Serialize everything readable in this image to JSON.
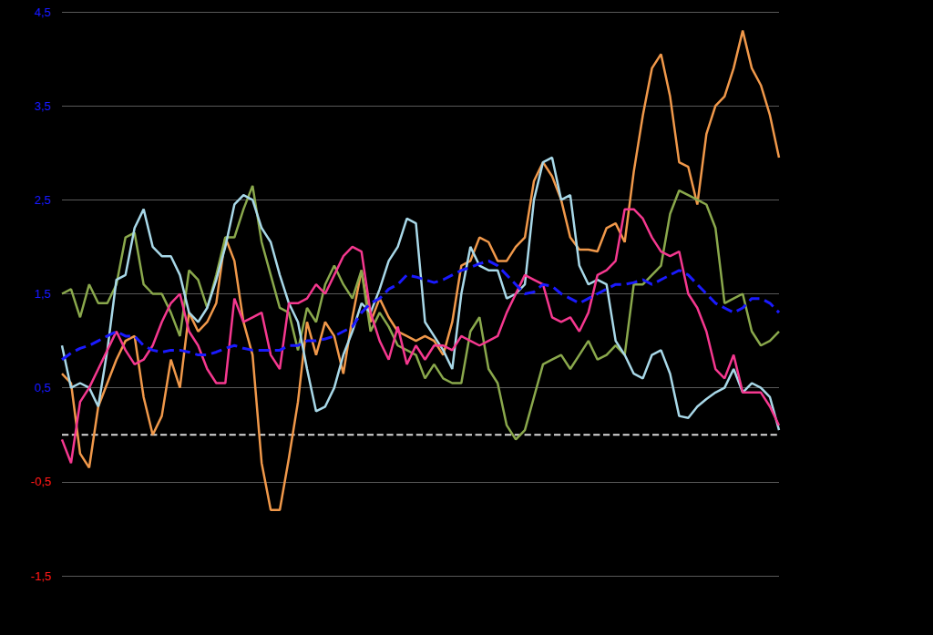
{
  "chart_data": {
    "type": "line",
    "categories": [
      null,
      null,
      null,
      null,
      null,
      null,
      null,
      null,
      null,
      null,
      null,
      null,
      null,
      null,
      null,
      null,
      null,
      null,
      null,
      null,
      null,
      null,
      null,
      null,
      null,
      null,
      null,
      null,
      null,
      null,
      null,
      null,
      null,
      null,
      null,
      null,
      null,
      null,
      null,
      null,
      null,
      null,
      null,
      null,
      null,
      null,
      null,
      null,
      null,
      null,
      null,
      null,
      null,
      null,
      null,
      null,
      null,
      null,
      null,
      null,
      null,
      null,
      null,
      null,
      null,
      null,
      null,
      null,
      null,
      null,
      null,
      null,
      null,
      null,
      null,
      null,
      null,
      null,
      null,
      null
    ],
    "series": [
      {
        "color": "#d9d9d9",
        "line_style": "dashed",
        "values": [
          0,
          0,
          0,
          0,
          0,
          0,
          0,
          0,
          0,
          0,
          0,
          0,
          0,
          0,
          0,
          0,
          0,
          0,
          0,
          0,
          0,
          0,
          0,
          0,
          0,
          0,
          0,
          0,
          0,
          0,
          0,
          0,
          0,
          0,
          0,
          0,
          0,
          0,
          0,
          0,
          0,
          0,
          0,
          0,
          0,
          0,
          0,
          0,
          0,
          0,
          0,
          0,
          0,
          0,
          0,
          0,
          0,
          0,
          0,
          0,
          0,
          0,
          0,
          0,
          0,
          0,
          0,
          0,
          0,
          0,
          0,
          0,
          0,
          0,
          0,
          0,
          0,
          0,
          0,
          0
        ]
      },
      {
        "color": "#f0984a",
        "line_style": "solid",
        "values": [
          0.65,
          0.55,
          -0.2,
          -0.35,
          0.3,
          0.55,
          0.8,
          1.0,
          1.05,
          0.4,
          0.0,
          0.2,
          0.8,
          0.5,
          1.3,
          1.1,
          1.2,
          1.4,
          2.1,
          1.85,
          1.2,
          0.85,
          -0.3,
          -0.8,
          -0.8,
          -0.25,
          0.35,
          1.2,
          0.85,
          1.2,
          1.05,
          0.65,
          1.25,
          1.75,
          1.2,
          1.45,
          1.25,
          1.1,
          1.05,
          1.0,
          1.05,
          1.0,
          0.85,
          1.2,
          1.8,
          1.85,
          2.1,
          2.05,
          1.85,
          1.85,
          2.0,
          2.1,
          2.7,
          2.9,
          2.75,
          2.5,
          2.1,
          1.97,
          1.97,
          1.95,
          2.2,
          2.25,
          2.05,
          2.8,
          3.4,
          3.9,
          4.05,
          3.6,
          2.9,
          2.85,
          2.45,
          3.2,
          3.5,
          3.6,
          3.9,
          4.3,
          3.9,
          3.72,
          3.4,
          2.95
        ]
      },
      {
        "color": "#8aa84c",
        "line_style": "solid",
        "values": [
          1.5,
          1.55,
          1.25,
          1.6,
          1.4,
          1.4,
          1.6,
          2.1,
          2.15,
          1.6,
          1.5,
          1.5,
          1.3,
          1.05,
          1.75,
          1.65,
          1.35,
          1.7,
          2.1,
          2.1,
          2.4,
          2.65,
          2.05,
          1.7,
          1.35,
          1.3,
          0.9,
          1.35,
          1.2,
          1.6,
          1.8,
          1.6,
          1.45,
          1.75,
          1.1,
          1.3,
          1.15,
          0.95,
          0.9,
          0.85,
          0.6,
          0.75,
          0.6,
          0.55,
          0.55,
          1.1,
          1.25,
          0.7,
          0.55,
          0.1,
          -0.05,
          0.05,
          0.4,
          0.75,
          0.8,
          0.85,
          0.7,
          0.85,
          1.0,
          0.8,
          0.85,
          0.95,
          0.85,
          1.6,
          1.6,
          1.7,
          1.8,
          2.35,
          2.6,
          2.55,
          2.5,
          2.45,
          2.2,
          1.4,
          1.45,
          1.5,
          1.1,
          0.95,
          1.0,
          1.1
        ]
      },
      {
        "color": "#a8d8e8",
        "line_style": "solid",
        "values": [
          0.95,
          0.5,
          0.55,
          0.5,
          0.3,
          0.9,
          1.65,
          1.7,
          2.2,
          2.4,
          2.0,
          1.9,
          1.9,
          1.7,
          1.3,
          1.2,
          1.35,
          1.65,
          2.0,
          2.45,
          2.55,
          2.5,
          2.2,
          2.05,
          1.7,
          1.4,
          1.2,
          0.7,
          0.25,
          0.3,
          0.5,
          0.85,
          1.1,
          1.4,
          1.3,
          1.55,
          1.85,
          2.0,
          2.3,
          2.25,
          1.2,
          1.05,
          0.9,
          0.7,
          1.5,
          2.0,
          1.8,
          1.75,
          1.75,
          1.45,
          1.5,
          1.6,
          2.5,
          2.9,
          2.95,
          2.5,
          2.55,
          1.8,
          1.6,
          1.65,
          1.6,
          1.0,
          0.85,
          0.65,
          0.6,
          0.85,
          0.9,
          0.65,
          0.2,
          0.18,
          0.3,
          0.38,
          0.45,
          0.5,
          0.7,
          0.45,
          0.55,
          0.5,
          0.4,
          0.05
        ]
      },
      {
        "color": "#f5388f",
        "line_style": "solid",
        "values": [
          -0.05,
          -0.3,
          0.35,
          0.5,
          0.7,
          0.9,
          1.1,
          0.9,
          0.75,
          0.8,
          0.95,
          1.2,
          1.4,
          1.5,
          1.1,
          0.95,
          0.7,
          0.55,
          0.55,
          1.45,
          1.2,
          1.25,
          1.3,
          0.85,
          0.7,
          1.4,
          1.4,
          1.45,
          1.6,
          1.5,
          1.7,
          1.9,
          2.0,
          1.95,
          1.3,
          1.0,
          0.8,
          1.15,
          0.75,
          0.95,
          0.8,
          0.95,
          0.95,
          0.9,
          1.05,
          1.0,
          0.95,
          1.0,
          1.05,
          1.3,
          1.5,
          1.7,
          1.65,
          1.6,
          1.25,
          1.2,
          1.25,
          1.1,
          1.3,
          1.7,
          1.75,
          1.85,
          2.4,
          2.4,
          2.3,
          2.1,
          1.95,
          1.9,
          1.95,
          1.5,
          1.35,
          1.1,
          0.7,
          0.6,
          0.85,
          0.45,
          0.45,
          0.45,
          0.3,
          0.1
        ]
      },
      {
        "color": "#1a1aff",
        "line_style": "dashed",
        "values": [
          0.8,
          0.87,
          0.92,
          0.95,
          1.0,
          1.05,
          1.1,
          1.05,
          1.05,
          0.95,
          0.9,
          0.88,
          0.9,
          0.9,
          0.88,
          0.85,
          0.85,
          0.88,
          0.92,
          0.95,
          0.92,
          0.9,
          0.9,
          0.9,
          0.9,
          0.95,
          0.95,
          1.0,
          1.0,
          1.02,
          1.05,
          1.1,
          1.15,
          1.3,
          1.4,
          1.45,
          1.55,
          1.6,
          1.7,
          1.68,
          1.65,
          1.62,
          1.65,
          1.7,
          1.75,
          1.78,
          1.82,
          1.85,
          1.8,
          1.7,
          1.6,
          1.5,
          1.52,
          1.6,
          1.58,
          1.5,
          1.45,
          1.4,
          1.45,
          1.5,
          1.55,
          1.6,
          1.6,
          1.62,
          1.65,
          1.6,
          1.65,
          1.7,
          1.75,
          1.7,
          1.6,
          1.5,
          1.4,
          1.35,
          1.3,
          1.35,
          1.45,
          1.45,
          1.4,
          1.3
        ]
      }
    ],
    "ylim": [
      -1.5,
      4.5
    ],
    "yticks": [
      {
        "value": -1.5,
        "label": "-1,5"
      },
      {
        "value": -0.5,
        "label": "-0,5"
      },
      {
        "value": 0.5,
        "label": "0,5"
      },
      {
        "value": 1.5,
        "label": "1,5"
      },
      {
        "value": 2.5,
        "label": "2,5"
      },
      {
        "value": 3.5,
        "label": "3,5"
      },
      {
        "value": 4.5,
        "label": "4,5"
      }
    ],
    "grid": true,
    "tick_labels": "y"
  }
}
